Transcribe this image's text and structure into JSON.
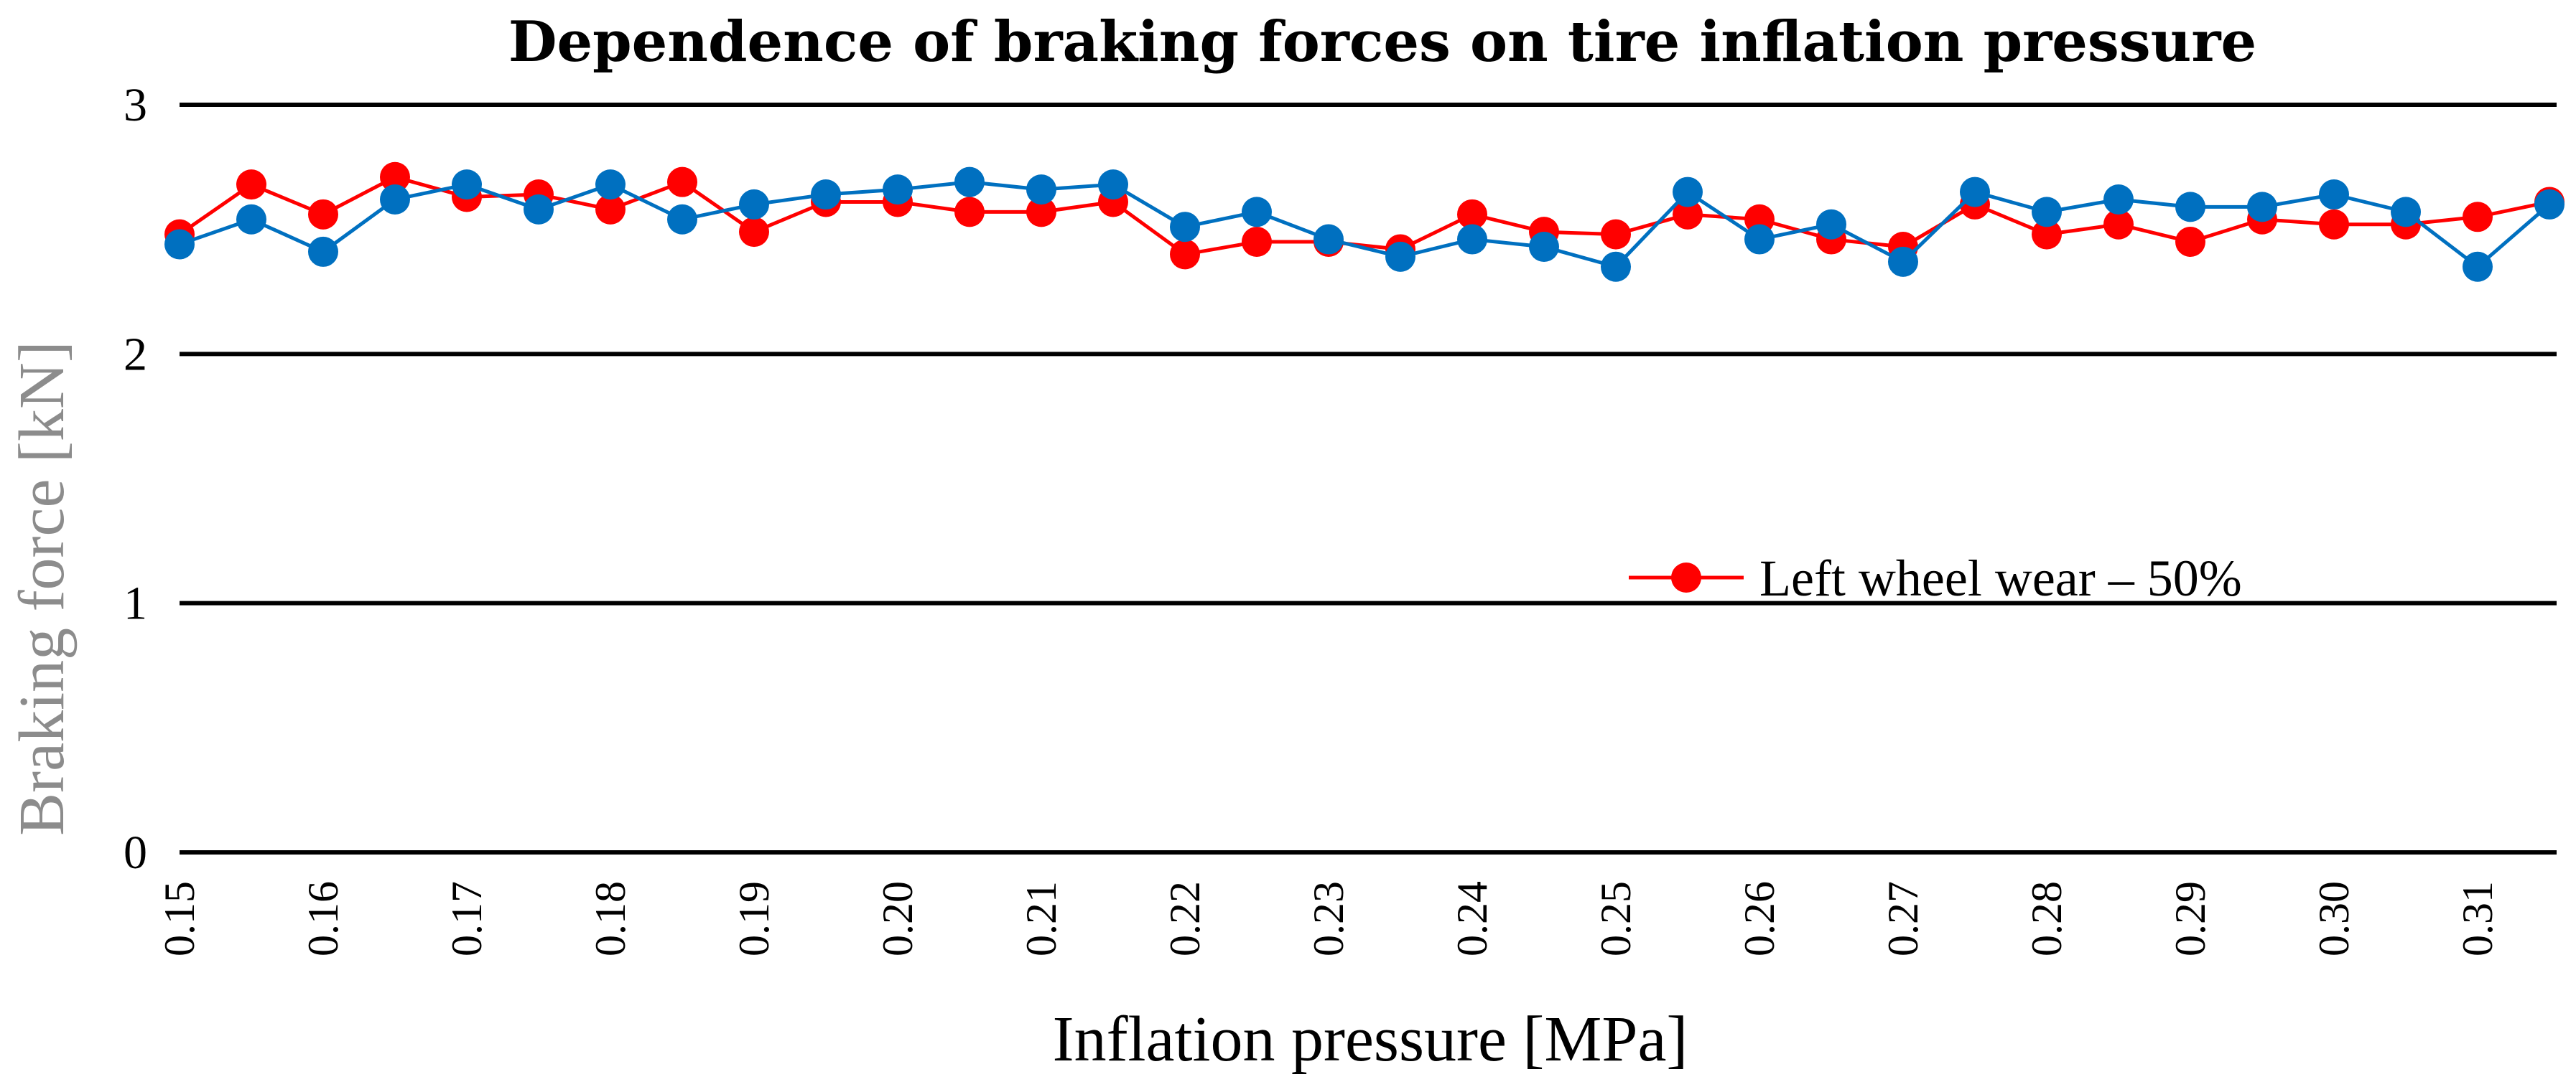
{
  "chart_data": {
    "type": "line",
    "title": "Dependence of braking forces on tire inflation pressure",
    "xlabel": "Inflation pressure [MPa]",
    "ylabel": "Braking force [kN]",
    "ylim": [
      0,
      3
    ],
    "yticks": [
      "0",
      "1",
      "2",
      "3"
    ],
    "grid": "horizontal",
    "legend_position": "center-right",
    "categories": [
      "0.15",
      "0.155",
      "0.16",
      "0.165",
      "0.17",
      "0.175",
      "0.18",
      "0.185",
      "0.19",
      "0.195",
      "0.20",
      "0.205",
      "0.21",
      "0.215",
      "0.22",
      "0.225",
      "0.23",
      "0.235",
      "0.24",
      "0.245",
      "0.25",
      "0.255",
      "0.26",
      "0.265",
      "0.27",
      "0.275",
      "0.28",
      "0.285",
      "0.29",
      "0.295",
      "0.30",
      "0.305",
      "0.31",
      "0.315"
    ],
    "x_tick_labels": [
      "0.15",
      "",
      "0.16",
      "",
      "0.17",
      "",
      "0.18",
      "",
      "0.19",
      "",
      "0.20",
      "",
      "0.21",
      "",
      "0.22",
      "",
      "0.23",
      "",
      "0.24",
      "",
      "0.25",
      "",
      "0.26",
      "",
      "0.27",
      "",
      "0.28",
      "",
      "0.29",
      "",
      "0.30",
      "",
      "0.31",
      ""
    ],
    "series": [
      {
        "name": "Left wheel wear – 50%",
        "color": "#ff0000",
        "marker": "circle",
        "values": [
          2.48,
          2.68,
          2.56,
          2.71,
          2.63,
          2.64,
          2.58,
          2.69,
          2.49,
          2.61,
          2.61,
          2.57,
          2.57,
          2.61,
          2.4,
          2.45,
          2.45,
          2.42,
          2.56,
          2.49,
          2.48,
          2.56,
          2.54,
          2.46,
          2.43,
          2.6,
          2.48,
          2.52,
          2.45,
          2.54,
          2.52,
          2.52,
          2.55,
          2.61
        ]
      },
      {
        "name": "",
        "color": "#0070c0",
        "marker": "circle",
        "values": [
          2.44,
          2.54,
          2.41,
          2.62,
          2.68,
          2.58,
          2.68,
          2.54,
          2.6,
          2.64,
          2.66,
          2.69,
          2.66,
          2.68,
          2.51,
          2.57,
          2.46,
          2.39,
          2.46,
          2.43,
          2.35,
          2.65,
          2.46,
          2.52,
          2.37,
          2.65,
          2.57,
          2.62,
          2.59,
          2.59,
          2.64,
          2.57,
          2.35,
          2.6
        ]
      }
    ]
  }
}
